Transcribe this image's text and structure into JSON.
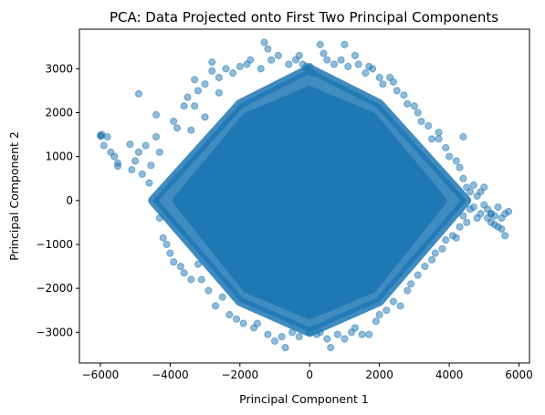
{
  "chart_data": {
    "type": "scatter",
    "title": "PCA: Data Projected onto First Two Principal Components",
    "xlabel": "Principal Component 1",
    "ylabel": "Principal Component 2",
    "xlim": [
      -6600,
      6300
    ],
    "ylim": [
      -3700,
      3900
    ],
    "xticks": [
      -6000,
      -4000,
      -2000,
      0,
      2000,
      4000,
      6000
    ],
    "yticks": [
      -3000,
      -2000,
      -1000,
      0,
      1000,
      2000,
      3000
    ],
    "grid": false,
    "legend": "none",
    "marker_color": "#1f77b4",
    "marker_alpha": 0.5,
    "dense_region": {
      "description_value": "dense rhombus-shaped cloud of points",
      "boundary": [
        [
          -4500,
          0
        ],
        [
          -2000,
          2200
        ],
        [
          0,
          3000
        ],
        [
          2000,
          2200
        ],
        [
          4500,
          0
        ],
        [
          2000,
          -2300
        ],
        [
          0,
          -3000
        ],
        [
          -2000,
          -2300
        ]
      ],
      "core": [
        [
          -3800,
          0
        ],
        [
          -1800,
          1900
        ],
        [
          0,
          2500
        ],
        [
          1800,
          1900
        ],
        [
          3800,
          0
        ],
        [
          1800,
          -2000
        ],
        [
          0,
          -2600
        ],
        [
          -1800,
          -2000
        ]
      ]
    },
    "series": [
      {
        "points": [
          [
            -6000,
            1480
          ],
          [
            -5980,
            1460
          ],
          [
            -5960,
            1500
          ],
          [
            -5800,
            1450
          ],
          [
            -5900,
            1250
          ],
          [
            -5700,
            1100
          ],
          [
            -5600,
            1000
          ],
          [
            -5500,
            780
          ],
          [
            -5500,
            850
          ],
          [
            -5150,
            1280
          ],
          [
            -5100,
            700
          ],
          [
            -5000,
            900
          ],
          [
            -4900,
            2430
          ],
          [
            -4900,
            1100
          ],
          [
            -4800,
            600
          ],
          [
            -4700,
            1250
          ],
          [
            -4600,
            400
          ],
          [
            -4550,
            800
          ],
          [
            -4400,
            1950
          ],
          [
            -4400,
            1450
          ],
          [
            -4300,
            1100
          ],
          [
            -4300,
            -400
          ],
          [
            -4200,
            -850
          ],
          [
            -4100,
            -1000
          ],
          [
            -4000,
            -1200
          ],
          [
            -3900,
            1800
          ],
          [
            -3900,
            -1400
          ],
          [
            -3800,
            1650
          ],
          [
            -3700,
            -1500
          ],
          [
            -3600,
            2150
          ],
          [
            -3600,
            -1650
          ],
          [
            -3500,
            2350
          ],
          [
            -3400,
            1600
          ],
          [
            -3400,
            -1800
          ],
          [
            -3300,
            2750
          ],
          [
            -3300,
            2150
          ],
          [
            -3200,
            -1450
          ],
          [
            -3200,
            2500
          ],
          [
            -3100,
            -1800
          ],
          [
            -3000,
            2650
          ],
          [
            -3000,
            1900
          ],
          [
            -2900,
            -2050
          ],
          [
            -2800,
            3150
          ],
          [
            -2800,
            2950
          ],
          [
            -2700,
            -2400
          ],
          [
            -2600,
            2450
          ],
          [
            -2600,
            2800
          ],
          [
            -2500,
            -2200
          ],
          [
            -2400,
            3000
          ],
          [
            -2300,
            -2600
          ],
          [
            -2200,
            2900
          ],
          [
            -2100,
            -2700
          ],
          [
            -2000,
            3050
          ],
          [
            -1900,
            -2800
          ],
          [
            -1800,
            3100
          ],
          [
            -1700,
            3200
          ],
          [
            -1600,
            -2900
          ],
          [
            -1500,
            -2800
          ],
          [
            -1400,
            3000
          ],
          [
            -1300,
            3600
          ],
          [
            -1200,
            3450
          ],
          [
            -1200,
            -3050
          ],
          [
            -1100,
            3200
          ],
          [
            -1000,
            -3200
          ],
          [
            -900,
            3300
          ],
          [
            -800,
            -3100
          ],
          [
            -700,
            -3350
          ],
          [
            -600,
            3100
          ],
          [
            -500,
            -3000
          ],
          [
            -400,
            3200
          ],
          [
            -300,
            3300
          ],
          [
            -300,
            -3100
          ],
          [
            -200,
            3100
          ],
          [
            -100,
            3050
          ],
          [
            -100,
            3000
          ],
          [
            0,
            3050
          ],
          [
            0,
            -3000
          ],
          [
            100,
            2900
          ],
          [
            200,
            -3050
          ],
          [
            300,
            3550
          ],
          [
            300,
            -3000
          ],
          [
            400,
            3350
          ],
          [
            500,
            -3150
          ],
          [
            500,
            3200
          ],
          [
            600,
            -3350
          ],
          [
            700,
            3100
          ],
          [
            800,
            -3050
          ],
          [
            900,
            3200
          ],
          [
            1000,
            3550
          ],
          [
            1000,
            -3150
          ],
          [
            1100,
            3050
          ],
          [
            1200,
            -3000
          ],
          [
            1300,
            3300
          ],
          [
            1300,
            -2900
          ],
          [
            1400,
            3100
          ],
          [
            1500,
            -3050
          ],
          [
            1600,
            2900
          ],
          [
            1700,
            3050
          ],
          [
            1700,
            -3050
          ],
          [
            1800,
            3000
          ],
          [
            1900,
            -2750
          ],
          [
            2000,
            2800
          ],
          [
            2000,
            -2600
          ],
          [
            2100,
            2650
          ],
          [
            2200,
            -2500
          ],
          [
            2300,
            2800
          ],
          [
            2400,
            2700
          ],
          [
            2400,
            -2300
          ],
          [
            2500,
            2500
          ],
          [
            2600,
            -2400
          ],
          [
            2700,
            2400
          ],
          [
            2800,
            2200
          ],
          [
            2800,
            -2050
          ],
          [
            2900,
            -1900
          ],
          [
            3000,
            2150
          ],
          [
            3100,
            2000
          ],
          [
            3100,
            -1700
          ],
          [
            3200,
            1800
          ],
          [
            3300,
            -1500
          ],
          [
            3400,
            1700
          ],
          [
            3500,
            1400
          ],
          [
            3500,
            -1350
          ],
          [
            3600,
            -1200
          ],
          [
            3700,
            1400
          ],
          [
            3800,
            -1100
          ],
          [
            3900,
            -900
          ],
          [
            3900,
            1200
          ],
          [
            4000,
            1000
          ],
          [
            4100,
            -800
          ],
          [
            4200,
            900
          ],
          [
            4200,
            -850
          ],
          [
            4300,
            750
          ],
          [
            4300,
            -600
          ],
          [
            4400,
            500
          ],
          [
            4400,
            -350
          ],
          [
            4500,
            300
          ],
          [
            4500,
            -500
          ],
          [
            4600,
            200
          ],
          [
            4600,
            -200
          ],
          [
            4700,
            350
          ],
          [
            4700,
            -150
          ],
          [
            4800,
            100
          ],
          [
            4800,
            -400
          ],
          [
            4900,
            200
          ],
          [
            4900,
            -300
          ],
          [
            5000,
            300
          ],
          [
            5000,
            -100
          ],
          [
            5100,
            -200
          ],
          [
            5100,
            -400
          ],
          [
            5200,
            -500
          ],
          [
            5200,
            -300
          ],
          [
            5300,
            -350
          ],
          [
            5400,
            -150
          ],
          [
            5400,
            -600
          ],
          [
            5500,
            -400
          ],
          [
            5500,
            -650
          ],
          [
            5600,
            -300
          ],
          [
            5700,
            -250
          ],
          [
            5600,
            -800
          ],
          [
            5200,
            -300
          ],
          [
            5300,
            -550
          ],
          [
            3700,
            1550
          ],
          [
            4400,
            1450
          ]
        ]
      }
    ]
  }
}
